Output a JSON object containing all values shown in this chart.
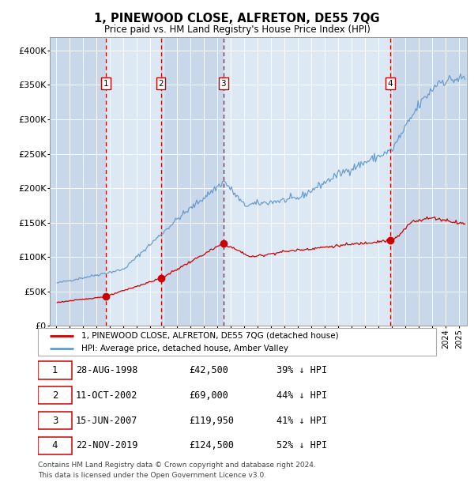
{
  "title": "1, PINEWOOD CLOSE, ALFRETON, DE55 7QG",
  "subtitle": "Price paid vs. HM Land Registry's House Price Index (HPI)",
  "plot_bg_color": "#dce9f5",
  "ylim": [
    0,
    420000
  ],
  "yticks": [
    0,
    50000,
    100000,
    150000,
    200000,
    250000,
    300000,
    350000,
    400000
  ],
  "ytick_labels": [
    "£0",
    "£50K",
    "£100K",
    "£150K",
    "£200K",
    "£250K",
    "£300K",
    "£350K",
    "£400K"
  ],
  "xmin": 1994.5,
  "xmax": 2025.6,
  "sale_dates": [
    1998.66,
    2002.78,
    2007.45,
    2019.9
  ],
  "sale_prices": [
    42500,
    69000,
    119950,
    124500
  ],
  "sale_labels": [
    "1",
    "2",
    "3",
    "4"
  ],
  "sale_color": "#cc0000",
  "hpi_color": "#6699cc",
  "legend_sale": "1, PINEWOOD CLOSE, ALFRETON, DE55 7QG (detached house)",
  "legend_hpi": "HPI: Average price, detached house, Amber Valley",
  "table_rows": [
    [
      "1",
      "28-AUG-1998",
      "£42,500",
      "39% ↓ HPI"
    ],
    [
      "2",
      "11-OCT-2002",
      "£69,000",
      "44% ↓ HPI"
    ],
    [
      "3",
      "15-JUN-2007",
      "£119,950",
      "41% ↓ HPI"
    ],
    [
      "4",
      "22-NOV-2019",
      "£124,500",
      "52% ↓ HPI"
    ]
  ],
  "footnote": "Contains HM Land Registry data © Crown copyright and database right 2024.\nThis data is licensed under the Open Government Licence v3.0."
}
